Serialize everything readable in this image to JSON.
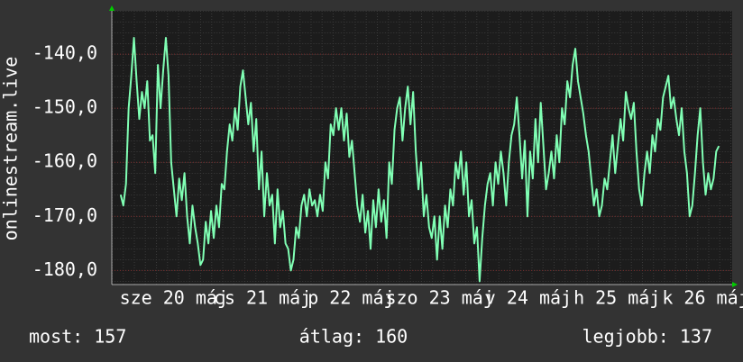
{
  "chart_data": {
    "type": "line",
    "y_label": "onlinestream.live",
    "color": "#80ffb4",
    "grid": true,
    "xlim": [
      0,
      7
    ],
    "xticks": [
      {
        "value": 0.7,
        "label": "sze 20 máj"
      },
      {
        "value": 1.7,
        "label": "cs 21 máj"
      },
      {
        "value": 2.7,
        "label": "p 22 máj"
      },
      {
        "value": 3.7,
        "label": "szo 23 máj"
      },
      {
        "value": 4.7,
        "label": "v 24 máj"
      },
      {
        "value": 5.7,
        "label": "h 25 máj"
      },
      {
        "value": 6.7,
        "label": "k 26 máj"
      }
    ],
    "ylim": [
      -182.6,
      -132
    ],
    "yticks": [
      {
        "value": -180,
        "label": "-180,0"
      },
      {
        "value": -170,
        "label": "-170,0"
      },
      {
        "value": -160,
        "label": "-160,0"
      },
      {
        "value": -150,
        "label": "-150,0"
      },
      {
        "value": -140,
        "label": "-140,0"
      }
    ],
    "x": [
      0.1,
      0.13,
      0.16,
      0.19,
      0.22,
      0.25,
      0.28,
      0.31,
      0.34,
      0.37,
      0.4,
      0.43,
      0.46,
      0.49,
      0.52,
      0.55,
      0.58,
      0.61,
      0.64,
      0.67,
      0.7,
      0.73,
      0.76,
      0.79,
      0.82,
      0.85,
      0.88,
      0.91,
      0.94,
      0.97,
      1,
      1.03,
      1.06,
      1.09,
      1.12,
      1.15,
      1.18,
      1.21,
      1.24,
      1.27,
      1.3,
      1.33,
      1.36,
      1.39,
      1.42,
      1.45,
      1.48,
      1.51,
      1.54,
      1.57,
      1.6,
      1.63,
      1.66,
      1.69,
      1.72,
      1.75,
      1.78,
      1.81,
      1.84,
      1.87,
      1.9,
      1.93,
      1.96,
      1.99,
      2.02,
      2.05,
      2.08,
      2.11,
      2.14,
      2.17,
      2.2,
      2.23,
      2.26,
      2.29,
      2.32,
      2.35,
      2.38,
      2.41,
      2.44,
      2.47,
      2.5,
      2.53,
      2.56,
      2.59,
      2.62,
      2.65,
      2.68,
      2.71,
      2.74,
      2.77,
      2.8,
      2.83,
      2.86,
      2.89,
      2.92,
      2.95,
      2.98,
      3.01,
      3.04,
      3.07,
      3.1,
      3.13,
      3.16,
      3.19,
      3.22,
      3.25,
      3.28,
      3.31,
      3.34,
      3.37,
      3.4,
      3.43,
      3.46,
      3.49,
      3.52,
      3.55,
      3.58,
      3.61,
      3.64,
      3.67,
      3.7,
      3.73,
      3.76,
      3.79,
      3.82,
      3.85,
      3.88,
      3.91,
      3.94,
      3.97,
      4,
      4.03,
      4.06,
      4.09,
      4.12,
      4.15,
      4.18,
      4.21,
      4.24,
      4.27,
      4.3,
      4.33,
      4.36,
      4.39,
      4.42,
      4.45,
      4.48,
      4.51,
      4.54,
      4.57,
      4.6,
      4.63,
      4.66,
      4.69,
      4.72,
      4.75,
      4.78,
      4.81,
      4.84,
      4.87,
      4.9,
      4.93,
      4.96,
      4.99,
      5.02,
      5.05,
      5.08,
      5.11,
      5.14,
      5.17,
      5.2,
      5.23,
      5.26,
      5.29,
      5.32,
      5.35,
      5.38,
      5.41,
      5.44,
      5.47,
      5.5,
      5.53,
      5.56,
      5.59,
      5.62,
      5.65,
      5.68,
      5.71,
      5.74,
      5.77,
      5.8,
      5.83,
      5.86,
      5.89,
      5.92,
      5.95,
      5.98,
      6.01,
      6.04,
      6.07,
      6.1,
      6.13,
      6.16,
      6.19,
      6.22,
      6.25,
      6.28,
      6.31,
      6.34,
      6.37,
      6.4,
      6.43,
      6.46,
      6.49,
      6.52,
      6.55,
      6.58,
      6.61,
      6.64,
      6.67,
      6.7,
      6.73,
      6.76,
      6.79,
      6.82,
      6.85
    ],
    "values": [
      -166,
      -168,
      -164,
      -150,
      -144,
      -137,
      -145,
      -152,
      -147,
      -150,
      -145,
      -156,
      -155,
      -162,
      -142,
      -150,
      -143,
      -137,
      -144,
      -160,
      -165,
      -170,
      -163,
      -167,
      -162,
      -170,
      -175,
      -168,
      -172,
      -175,
      -179,
      -178,
      -171,
      -175,
      -169,
      -174,
      -168,
      -172,
      -164,
      -165,
      -158,
      -153,
      -156,
      -150,
      -154,
      -146,
      -143,
      -148,
      -153,
      -149,
      -158,
      -152,
      -165,
      -158,
      -170,
      -162,
      -168,
      -166,
      -175,
      -165,
      -172,
      -169,
      -175,
      -176,
      -180,
      -178,
      -172,
      -174,
      -168,
      -166,
      -170,
      -165,
      -168,
      -167,
      -170,
      -166,
      -169,
      -160,
      -163,
      -153,
      -155,
      -150,
      -154,
      -150,
      -156,
      -151,
      -159,
      -156,
      -162,
      -168,
      -171,
      -166,
      -173,
      -169,
      -176,
      -167,
      -172,
      -165,
      -171,
      -167,
      -174,
      -160,
      -164,
      -154,
      -150,
      -148,
      -156,
      -150,
      -146,
      -153,
      -147,
      -158,
      -165,
      -160,
      -170,
      -166,
      -172,
      -174,
      -170,
      -178,
      -170,
      -176,
      -168,
      -172,
      -165,
      -168,
      -160,
      -163,
      -158,
      -166,
      -160,
      -170,
      -167,
      -175,
      -172,
      -182,
      -174,
      -168,
      -164,
      -162,
      -168,
      -160,
      -164,
      -158,
      -162,
      -168,
      -160,
      -155,
      -153,
      -148,
      -155,
      -163,
      -156,
      -170,
      -158,
      -163,
      -152,
      -160,
      -149,
      -157,
      -165,
      -162,
      -158,
      -163,
      -155,
      -160,
      -150,
      -153,
      -145,
      -148,
      -142,
      -139,
      -145,
      -148,
      -151,
      -155,
      -158,
      -163,
      -168,
      -165,
      -170,
      -168,
      -163,
      -165,
      -160,
      -155,
      -162,
      -157,
      -152,
      -156,
      -147,
      -150,
      -152,
      -149,
      -158,
      -165,
      -168,
      -162,
      -158,
      -162,
      -155,
      -158,
      -152,
      -154,
      -148,
      -146,
      -144,
      -150,
      -148,
      -152,
      -155,
      -150,
      -158,
      -162,
      -170,
      -168,
      -162,
      -155,
      -150,
      -160,
      -166,
      -162,
      -165,
      -163,
      -158,
      -157
    ],
    "stats": [
      "most: 157",
      "átlag: 160",
      "legjobb: 137"
    ]
  }
}
